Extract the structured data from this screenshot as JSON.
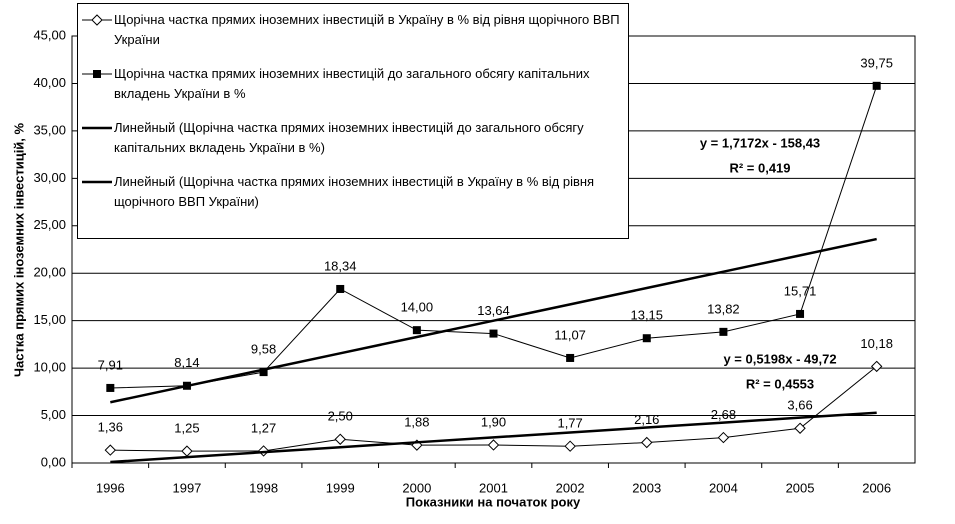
{
  "chart_data": {
    "type": "line",
    "y_label": "Частка прямих іноземних інвестицій, %",
    "x_label": "Показники на початок року",
    "categories": [
      "1996",
      "1997",
      "1998",
      "1999",
      "2000",
      "2001",
      "2002",
      "2003",
      "2004",
      "2005",
      "2006"
    ],
    "ylim": [
      0,
      45
    ],
    "yticks": [
      {
        "value": 0,
        "label": "0,00"
      },
      {
        "value": 5,
        "label": "5,00"
      },
      {
        "value": 10,
        "label": "10,00"
      },
      {
        "value": 15,
        "label": "15,00"
      },
      {
        "value": 20,
        "label": "20,00"
      },
      {
        "value": 25,
        "label": "25,00"
      },
      {
        "value": 30,
        "label": "30,00"
      },
      {
        "value": 35,
        "label": "35,00"
      },
      {
        "value": 40,
        "label": "40,00"
      },
      {
        "value": 45,
        "label": "45,00"
      }
    ],
    "grid": true,
    "series": [
      {
        "name": "Щорічна частка прямих іноземних інвестицій в Україну в % від рівня щорічного ВВП України",
        "color": "#000000",
        "marker": "diamond",
        "width": 1,
        "values": [
          1.36,
          1.25,
          1.27,
          2.5,
          1.88,
          1.9,
          1.77,
          2.16,
          2.68,
          3.66,
          10.18
        ],
        "value_labels": [
          "1,36",
          "1,25",
          "1,27",
          "2,50",
          "1,88",
          "1,90",
          "1,77",
          "2,16",
          "2,68",
          "3,66",
          "10,18"
        ]
      },
      {
        "name": "Щорічна частка прямих іноземних інвестицій до загального обсягу капітальних вкладень України в %",
        "color": "#000000",
        "marker": "square",
        "width": 1,
        "values": [
          7.91,
          8.14,
          9.58,
          18.34,
          14.0,
          13.64,
          11.07,
          13.15,
          13.82,
          15.71,
          39.75
        ],
        "value_labels": [
          "7,91",
          "8,14",
          "9,58",
          "18,34",
          "14,00",
          "13,64",
          "11,07",
          "13,15",
          "13,82",
          "15,71",
          "39,75"
        ]
      },
      {
        "name": "Линейный (Щорічна частка прямих іноземних інвестицій до загального обсягу капітальних вкладень України в %)",
        "color": "#000000",
        "marker": "none",
        "width": 2.5,
        "values": [
          6.4,
          8.12,
          9.84,
          11.56,
          13.28,
          15.0,
          16.72,
          18.44,
          20.16,
          21.88,
          23.6
        ]
      },
      {
        "name": "Линейный (Щорічна частка прямих іноземних інвестицій в Україну в % від рівня щорічного ВВП України)",
        "color": "#000000",
        "marker": "none",
        "width": 2.5,
        "values": [
          0.1,
          0.62,
          1.14,
          1.66,
          2.18,
          2.7,
          3.22,
          3.74,
          4.26,
          4.78,
          5.3
        ]
      }
    ],
    "annotations": [
      "y = 1,7172x - 158,43",
      "R² = 0,419",
      "y = 0,5198x - 49,72",
      "R² = 0,4553"
    ]
  }
}
